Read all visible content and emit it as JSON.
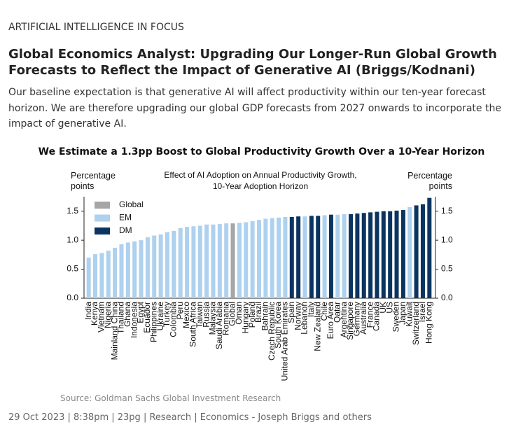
{
  "header": {
    "kicker": "ARTIFICIAL INTELLIGENCE IN FOCUS",
    "headline": "Global Economics Analyst: Upgrading Our Longer-Run Global Growth Forecasts to Reflect the Impact of Generative AI (Briggs/Kodnani)",
    "body": "Our baseline expectation is that generative AI will affect productivity within our ten-year forecast horizon. We are therefore upgrading our global GDP forecasts from 2027 onwards to incorporate the impact of generative AI."
  },
  "chart_data": {
    "type": "bar",
    "title": "We Estimate a 1.3pp Boost to Global Productivity Growth Over a 10-Year Horizon",
    "subtitle": [
      "Effect of AI Adoption on Annual Productivity Growth,",
      "10-Year Adoption Horizon"
    ],
    "ylabel": "Percentage points",
    "y2label": "Percentage points",
    "categories": [
      "India",
      "Kenya",
      "Vietnam",
      "Nigeria",
      "Mainland China",
      "Thailand",
      "Ghana",
      "Indonesia",
      "Egypt",
      "Ecuador",
      "Philippines",
      "Ukraine",
      "Turkey",
      "Colombia",
      "Peru",
      "Mexico",
      "South Africa",
      "Taiwan",
      "Russia",
      "Malaysia",
      "Saudi Arabia",
      "Romania",
      "Global",
      "Oman",
      "Hungary",
      "Poland",
      "Brazil",
      "Bahrain",
      "Czech Republic",
      "South Korea",
      "United Arab Emirates",
      "Spain",
      "Norway",
      "Lebanon",
      "Italy",
      "New Zealand",
      "Chile",
      "Euro Area",
      "Qatar",
      "Argentina",
      "Singapore",
      "Germany",
      "Australia",
      "France",
      "Canada",
      "UK",
      "US",
      "Sweden",
      "Japan",
      "Kuwait",
      "Switzerland",
      "Israel",
      "Hong Kong"
    ],
    "series": [
      {
        "name": "Global",
        "color": "#a6a6a6",
        "values": [
          null,
          null,
          null,
          null,
          null,
          null,
          null,
          null,
          null,
          null,
          null,
          null,
          null,
          null,
          null,
          null,
          null,
          null,
          null,
          null,
          null,
          null,
          1.29,
          null,
          null,
          null,
          null,
          null,
          null,
          null,
          null,
          null,
          null,
          null,
          null,
          null,
          null,
          null,
          null,
          null,
          null,
          null,
          null,
          null,
          null,
          null,
          null,
          null,
          null,
          null,
          null,
          null,
          null
        ]
      },
      {
        "name": "EM",
        "color": "#aed1ee",
        "values": [
          0.7,
          0.76,
          0.78,
          0.82,
          0.87,
          0.93,
          0.96,
          0.98,
          1.0,
          1.05,
          1.08,
          1.1,
          1.14,
          1.16,
          1.21,
          1.23,
          1.24,
          1.25,
          1.27,
          1.27,
          1.28,
          1.29,
          null,
          1.3,
          1.31,
          1.33,
          1.35,
          1.37,
          1.38,
          1.39,
          1.4,
          null,
          null,
          1.41,
          null,
          null,
          1.43,
          null,
          1.44,
          1.45,
          null,
          null,
          null,
          null,
          null,
          null,
          null,
          null,
          null,
          1.57,
          null,
          null,
          null
        ]
      },
      {
        "name": "DM",
        "color": "#0b3460",
        "values": [
          null,
          null,
          null,
          null,
          null,
          null,
          null,
          null,
          null,
          null,
          null,
          null,
          null,
          null,
          null,
          null,
          null,
          null,
          null,
          null,
          null,
          null,
          null,
          null,
          null,
          null,
          null,
          null,
          null,
          null,
          null,
          1.4,
          1.41,
          null,
          1.42,
          1.42,
          null,
          1.44,
          null,
          null,
          1.45,
          1.46,
          1.47,
          1.48,
          1.49,
          1.5,
          1.5,
          1.51,
          1.52,
          null,
          1.6,
          1.62,
          1.73
        ]
      }
    ],
    "ylim": [
      0,
      1.75
    ],
    "yticks": [
      {
        "value": 0,
        "label": "0.0"
      },
      {
        "value": 0.5,
        "label": "0.5"
      },
      {
        "value": 1,
        "label": "1.0"
      },
      {
        "value": 1.5,
        "label": "1.5"
      }
    ],
    "y2lim": [
      0,
      1.75
    ],
    "y2ticks": [
      {
        "value": 0,
        "label": "0.0"
      },
      {
        "value": 0.5,
        "label": "0.5"
      },
      {
        "value": 1,
        "label": "1.0"
      },
      {
        "value": 1.5,
        "label": "1.5"
      }
    ],
    "grid": false,
    "legend": "upper left"
  },
  "source": "Source: Goldman Sachs Global Investment Research",
  "footer": "29 Oct 2023 | 8:38pm | 23pg | Research | Economics - Joseph Briggs and others"
}
